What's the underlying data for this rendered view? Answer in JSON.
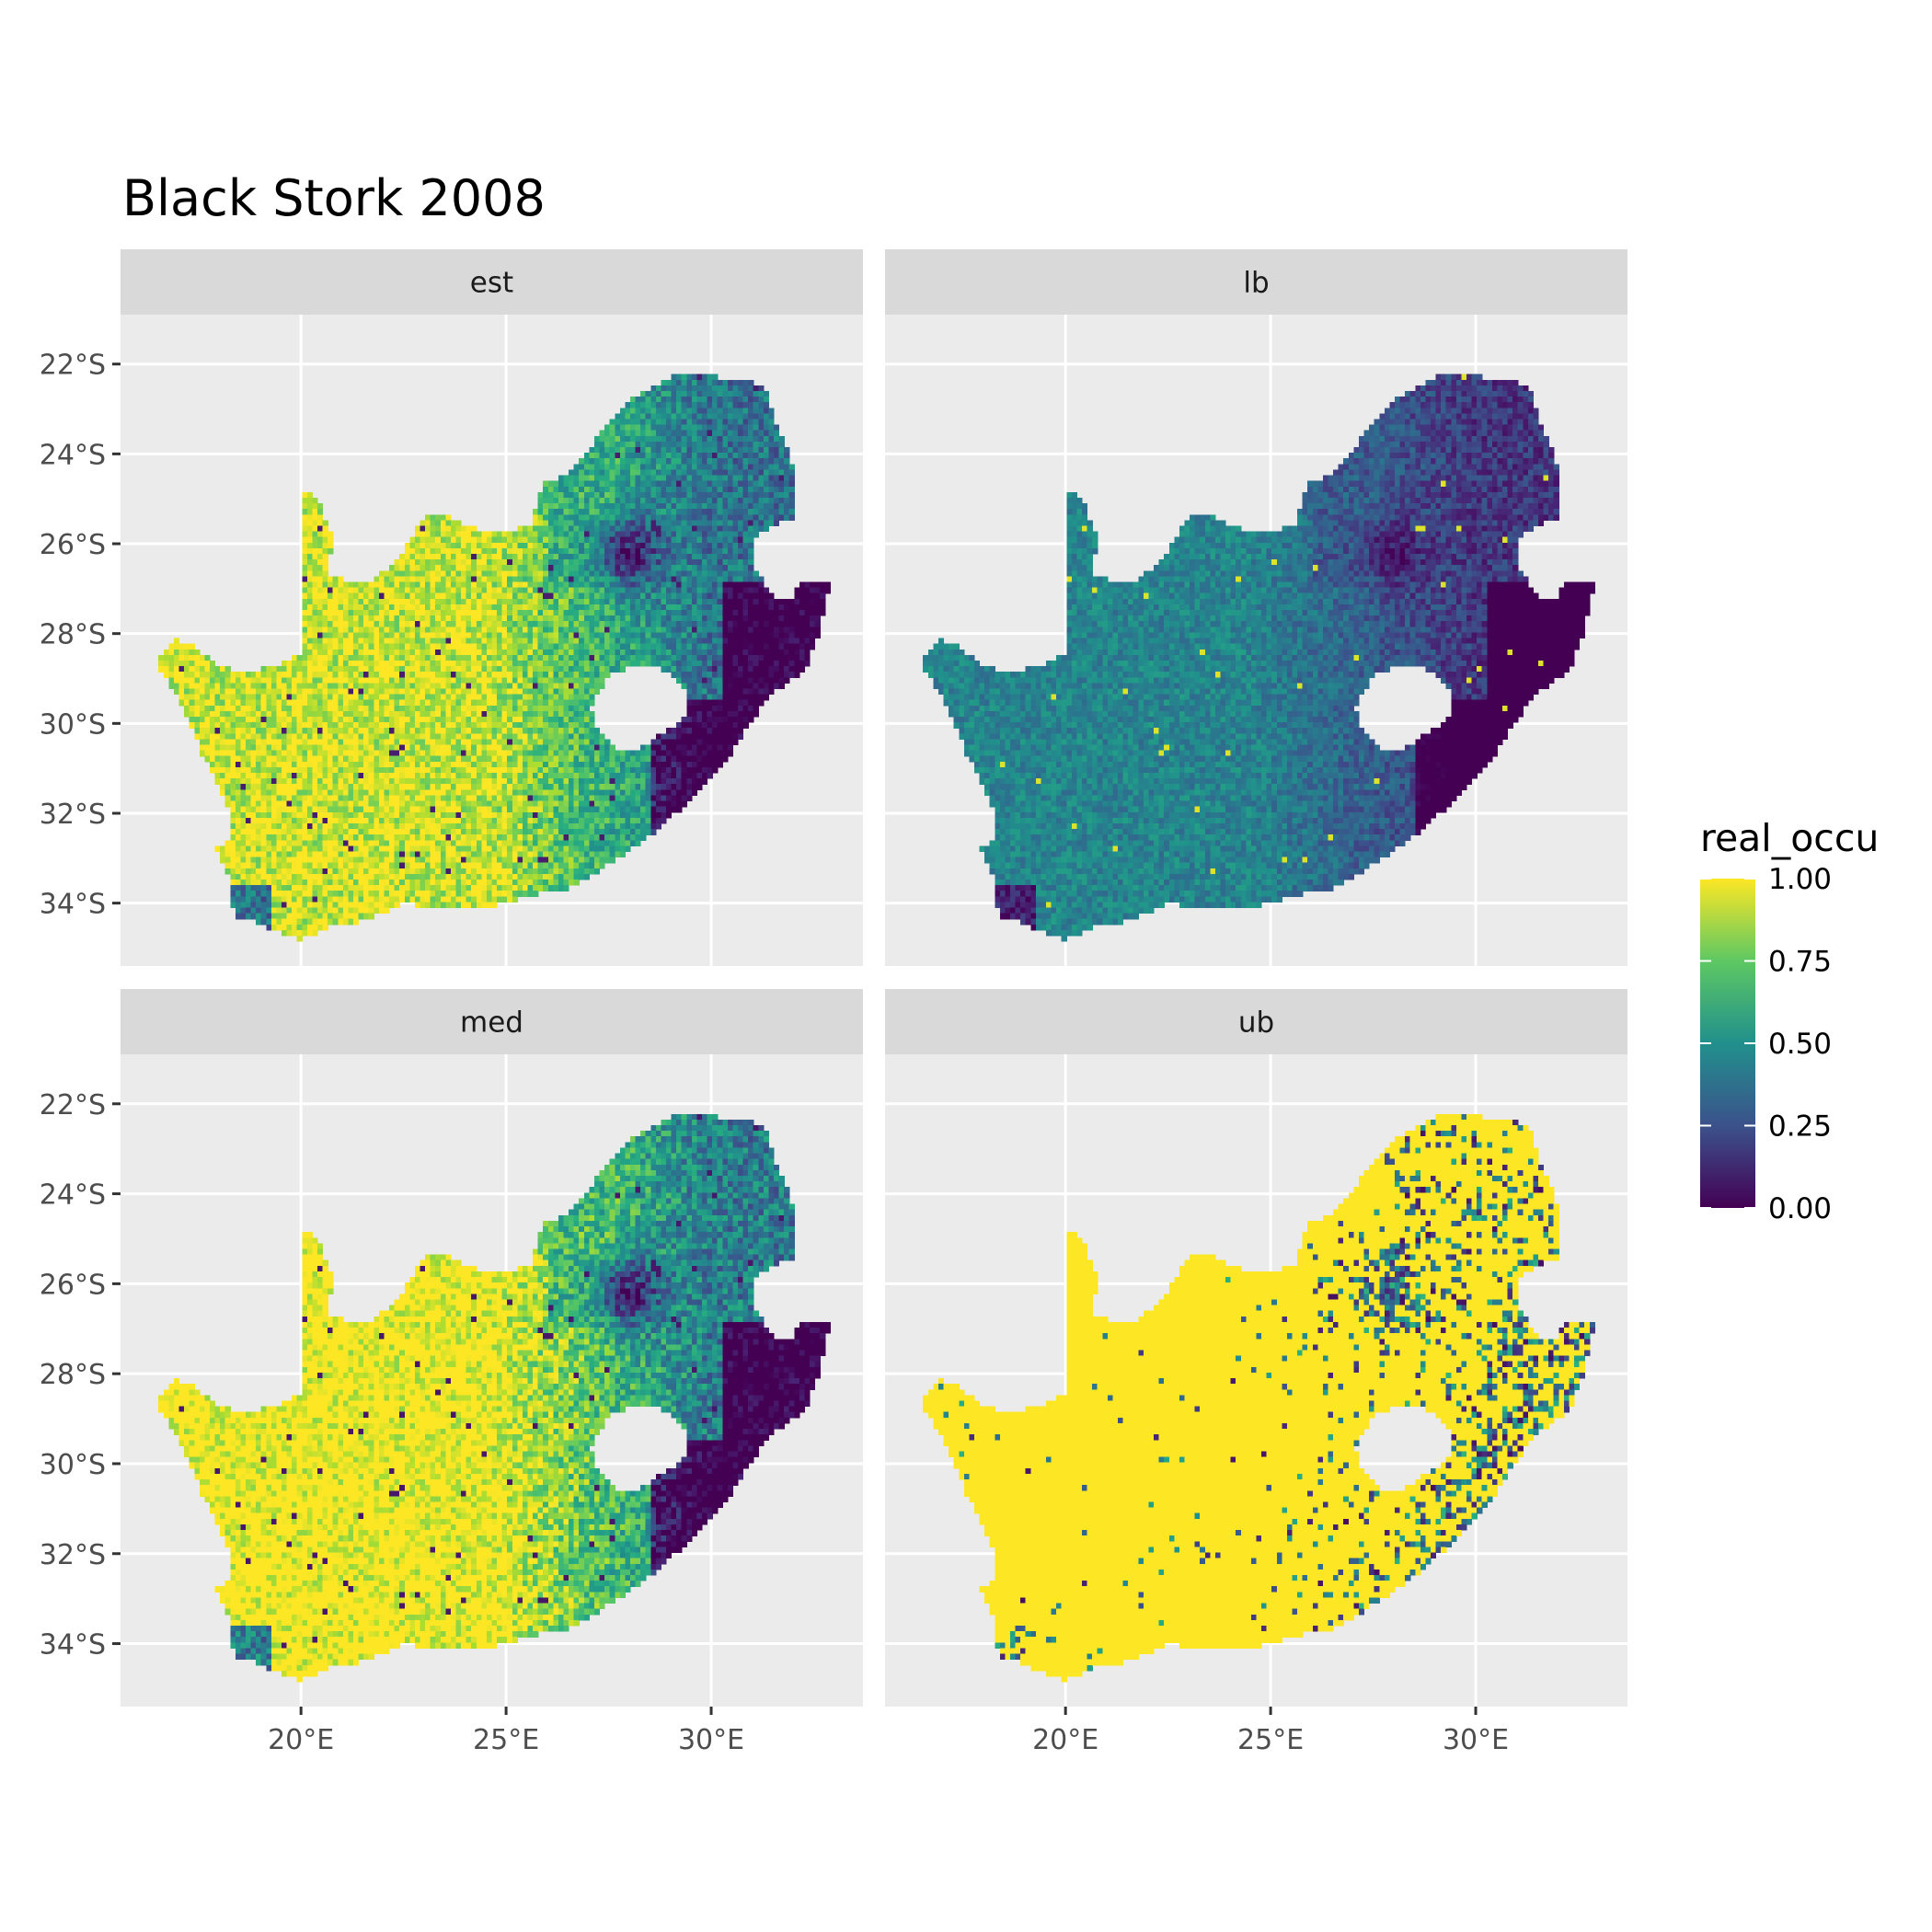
{
  "title": "Black Stork 2008",
  "panels": [
    {
      "label": "est",
      "key": "est"
    },
    {
      "label": "lb",
      "key": "lb"
    },
    {
      "label": "med",
      "key": "med"
    },
    {
      "label": "ub",
      "key": "ub"
    }
  ],
  "axes": {
    "x_ticks": [
      {
        "value": 20,
        "label": "20°E"
      },
      {
        "value": 25,
        "label": "25°E"
      },
      {
        "value": 30,
        "label": "30°E"
      }
    ],
    "y_ticks": [
      {
        "value": -22,
        "label": "22°S"
      },
      {
        "value": -24,
        "label": "24°S"
      },
      {
        "value": -26,
        "label": "26°S"
      },
      {
        "value": -28,
        "label": "28°S"
      },
      {
        "value": -30,
        "label": "30°S"
      },
      {
        "value": -32,
        "label": "32°S"
      },
      {
        "value": -34,
        "label": "34°S"
      }
    ],
    "xlim": [
      15.6,
      33.7
    ],
    "ylim": [
      -35.4,
      -20.9
    ]
  },
  "legend": {
    "title": "real_occu",
    "ticks": [
      {
        "value": 1.0,
        "label": "1.00"
      },
      {
        "value": 0.75,
        "label": "0.75"
      },
      {
        "value": 0.5,
        "label": "0.50"
      },
      {
        "value": 0.25,
        "label": "0.25"
      },
      {
        "value": 0.0,
        "label": "0.00"
      }
    ],
    "palette": [
      "#440154",
      "#3b528b",
      "#21908c",
      "#5dc863",
      "#fde725"
    ],
    "range": [
      0,
      1
    ]
  },
  "colors": {
    "panel_bg": "#ebebeb",
    "grid": "#ffffff",
    "strip_bg": "#d9d9d9"
  },
  "map": {
    "region": "South Africa",
    "excluded_enclave": "Lesotho",
    "cell_size_deg": 0.125,
    "panel_levels": {
      "est": "high (yellow) in west, low (purple) in east",
      "lb": "mostly low (teal to purple), lowest in east",
      "med": "very high in west, low in east",
      "ub": "almost entirely 1.00, scattered low cells in east"
    }
  }
}
